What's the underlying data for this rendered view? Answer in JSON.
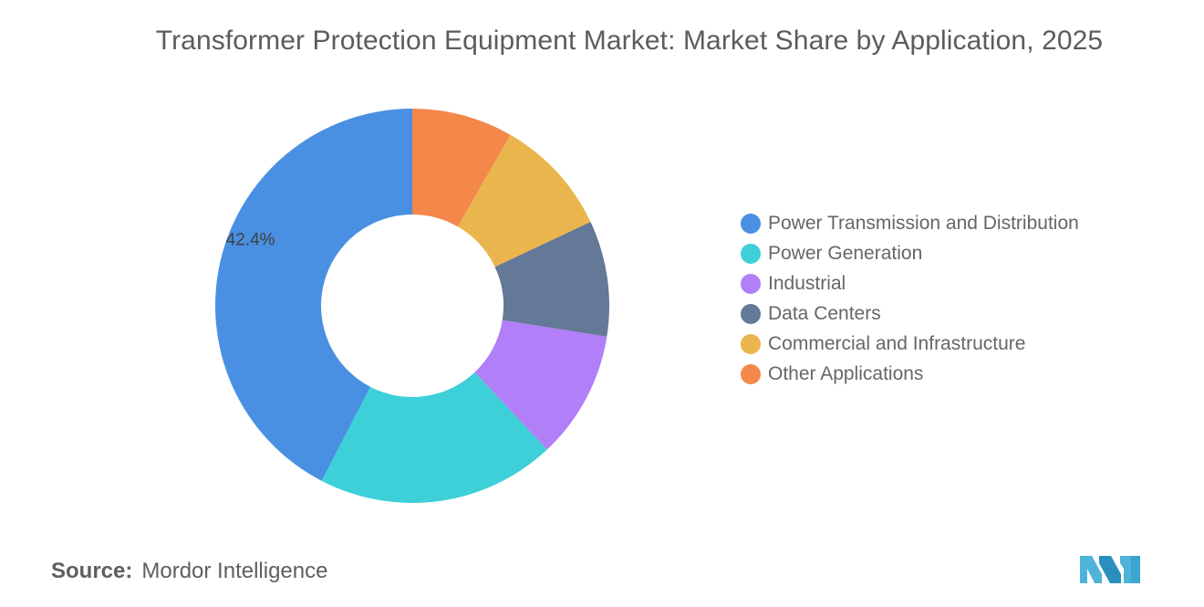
{
  "title": "Transformer Protection Equipment Market: Market Share by Application, 2025",
  "source": {
    "label": "Source:",
    "text": "Mordor Intelligence"
  },
  "logo_icon": "mordor-intelligence-logo",
  "chart_data": {
    "type": "pie",
    "variant": "donut",
    "title": "Transformer Protection Equipment Market: Market Share by Application, 2025",
    "legend_position": "right",
    "units": "%",
    "series": [
      {
        "name": "Power Transmission and Distribution",
        "value": 42.4,
        "color": "#4a90e2",
        "label": "42.4%"
      },
      {
        "name": "Power Generation",
        "value": 19.6,
        "color": "#3dd0d8",
        "label": ""
      },
      {
        "name": "Industrial",
        "value": 10.5,
        "color": "#b17ff7",
        "label": ""
      },
      {
        "name": "Data Centers",
        "value": 9.5,
        "color": "#647897",
        "label": ""
      },
      {
        "name": "Commercial and Infrastructure",
        "value": 9.7,
        "color": "#ebb54e",
        "label": ""
      },
      {
        "name": "Other Applications",
        "value": 8.3,
        "color": "#f4874a",
        "label": ""
      }
    ]
  }
}
